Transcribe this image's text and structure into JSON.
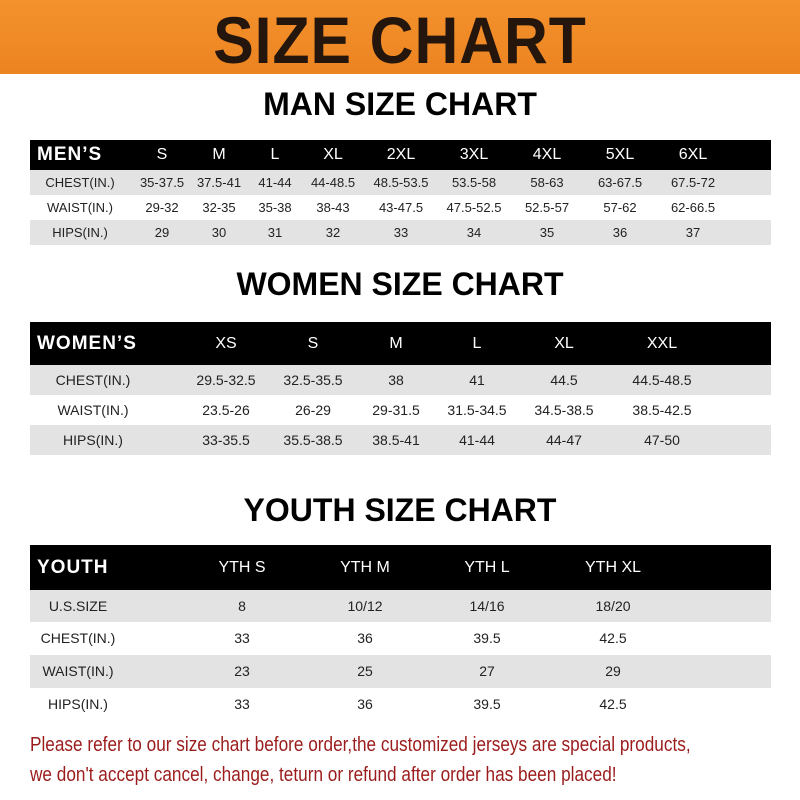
{
  "banner": {
    "title": "SIZE CHART",
    "color": "#f08a24"
  },
  "men": {
    "title": "MAN SIZE CHART",
    "header": [
      "MEN’S",
      "S",
      "M",
      "L",
      "XL",
      "2XL",
      "3XL",
      "4XL",
      "5XL",
      "6XL"
    ],
    "rows": [
      [
        "CHEST(IN.)",
        "35-37.5",
        "37.5-41",
        "41-44",
        "44-48.5",
        "48.5-53.5",
        "53.5-58",
        "58-63",
        "63-67.5",
        "67.5-72"
      ],
      [
        "WAIST(IN.)",
        "29-32",
        "32-35",
        "35-38",
        "38-43",
        "43-47.5",
        "47.5-52.5",
        "52.5-57",
        "57-62",
        "62-66.5"
      ],
      [
        "HIPS(IN.)",
        "29",
        "30",
        "31",
        "32",
        "33",
        "34",
        "35",
        "36",
        "37"
      ]
    ]
  },
  "women": {
    "title": "WOMEN SIZE CHART",
    "header": [
      "WOMEN’S",
      "XS",
      "S",
      "M",
      "L",
      "XL",
      "XXL"
    ],
    "rows": [
      [
        "CHEST(IN.)",
        "29.5-32.5",
        "32.5-35.5",
        "38",
        "41",
        "44.5",
        "44.5-48.5"
      ],
      [
        "WAIST(IN.)",
        "23.5-26",
        "26-29",
        "29-31.5",
        "31.5-34.5",
        "34.5-38.5",
        "38.5-42.5"
      ],
      [
        "HIPS(IN.)",
        "33-35.5",
        "35.5-38.5",
        "38.5-41",
        "41-44",
        "44-47",
        "47-50"
      ]
    ]
  },
  "youth": {
    "title": "YOUTH SIZE CHART",
    "header": [
      "YOUTH",
      "YTH S",
      "YTH M",
      "YTH L",
      "YTH XL"
    ],
    "rows": [
      [
        "U.S.SIZE",
        "8",
        "10/12",
        "14/16",
        "18/20"
      ],
      [
        "CHEST(IN.)",
        "33",
        "36",
        "39.5",
        "42.5"
      ],
      [
        "WAIST(IN.)",
        "23",
        "25",
        "27",
        "29"
      ],
      [
        "HIPS(IN.)",
        "33",
        "36",
        "39.5",
        "42.5"
      ]
    ]
  },
  "footer": {
    "line1": "Please refer to our size chart before order,the customized jerseys are special products,",
    "line2": "we don't accept cancel, change, teturn or refund after order has been placed!",
    "color": "#9b1c1c"
  }
}
